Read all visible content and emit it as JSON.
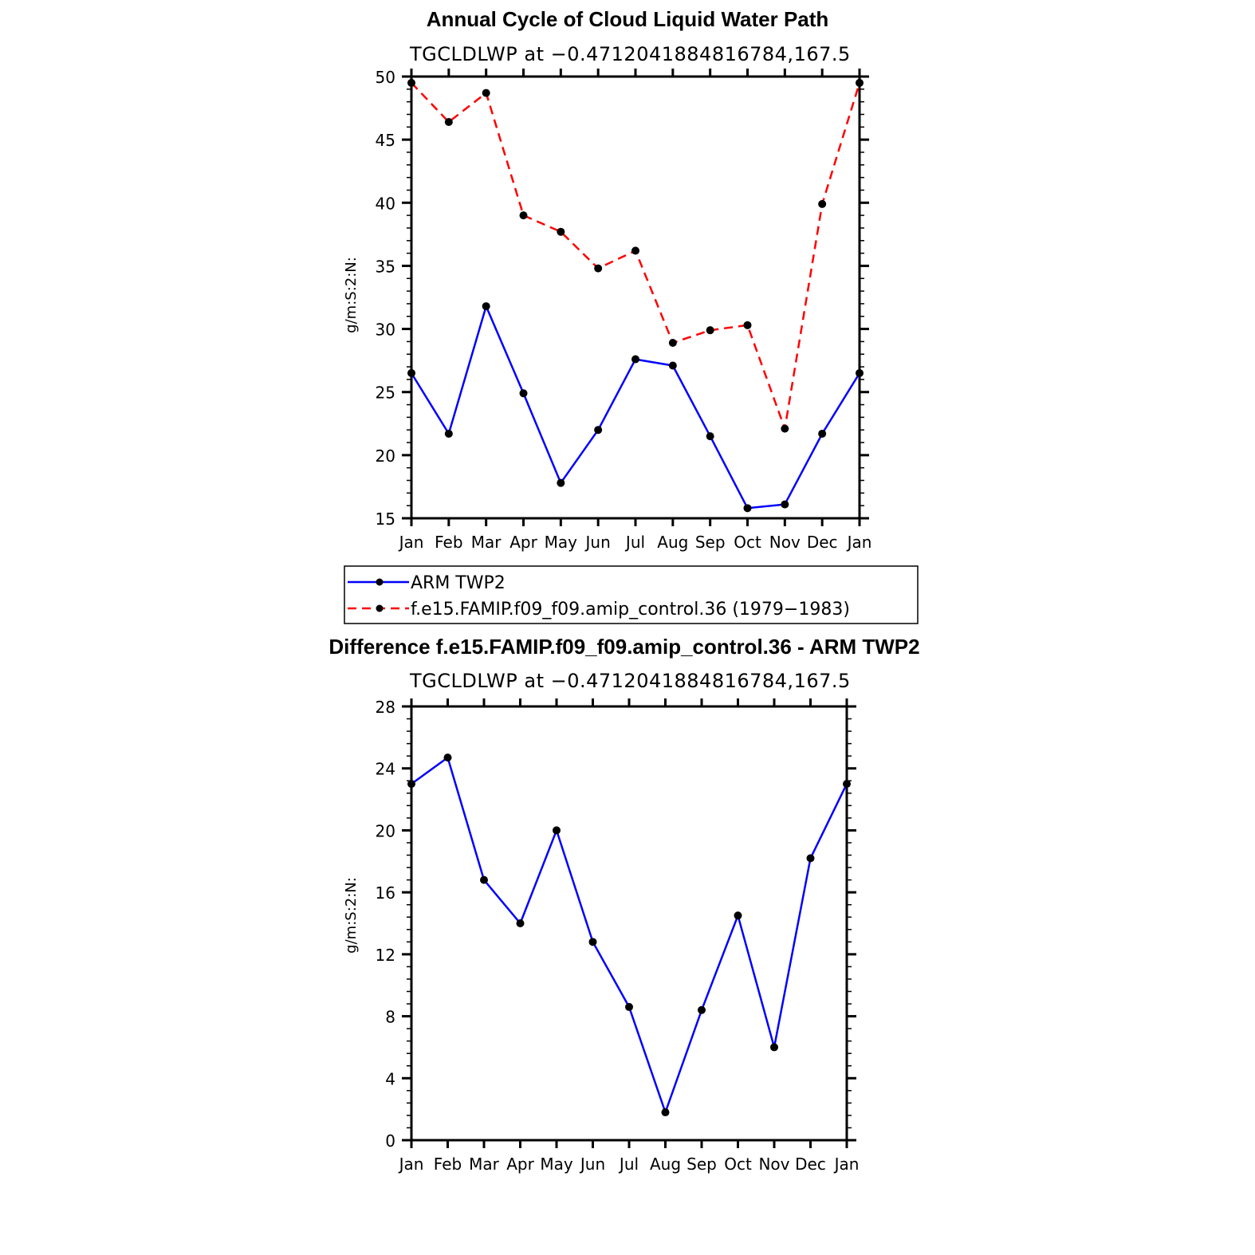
{
  "chart_data": [
    {
      "type": "line",
      "title": "Annual Cycle of Cloud Liquid Water Path",
      "subtitle": "TGCLDLWP at −0.4712041884816784,167.5",
      "xlabel": "",
      "ylabel": "g/m:S:2:N:",
      "categories": [
        "Jan",
        "Feb",
        "Mar",
        "Apr",
        "May",
        "Jun",
        "Jul",
        "Aug",
        "Sep",
        "Oct",
        "Nov",
        "Dec",
        "Jan"
      ],
      "yticks": [
        "15",
        "20",
        "25",
        "30",
        "35",
        "40",
        "45",
        "50"
      ],
      "ylim": [
        15,
        50
      ],
      "grid": false,
      "legend_position": "below",
      "series": [
        {
          "name": "ARM TWP2",
          "color": "#0000ff",
          "dash": "solid",
          "values": [
            26.5,
            21.7,
            31.8,
            24.9,
            17.8,
            22.0,
            27.6,
            27.1,
            21.5,
            15.8,
            16.1,
            21.7,
            26.5
          ]
        },
        {
          "name": "f.e15.FAMIP.f09_f09.amip_control.36 (1979−1983)",
          "color": "#ff0000",
          "dash": "dashed",
          "values": [
            49.5,
            46.4,
            48.7,
            39.0,
            37.7,
            34.8,
            36.2,
            28.9,
            29.9,
            30.3,
            22.1,
            39.9,
            49.5
          ]
        }
      ]
    },
    {
      "type": "line",
      "title": "Difference f.e15.FAMIP.f09_f09.amip_control.36 - ARM TWP2",
      "subtitle": "TGCLDLWP at −0.4712041884816784,167.5",
      "xlabel": "",
      "ylabel": "g/m:S:2:N:",
      "categories": [
        "Jan",
        "Feb",
        "Mar",
        "Apr",
        "May",
        "Jun",
        "Jul",
        "Aug",
        "Sep",
        "Oct",
        "Nov",
        "Dec",
        "Jan"
      ],
      "yticks": [
        "0",
        "4",
        "8",
        "12",
        "16",
        "20",
        "24",
        "28"
      ],
      "ylim": [
        0,
        28
      ],
      "grid": false,
      "series": [
        {
          "color": "#0000ff",
          "dash": "solid",
          "values": [
            23.0,
            24.7,
            16.8,
            14.0,
            20.0,
            12.8,
            8.6,
            1.8,
            8.4,
            14.5,
            6.0,
            18.2,
            23.0
          ]
        }
      ]
    }
  ]
}
